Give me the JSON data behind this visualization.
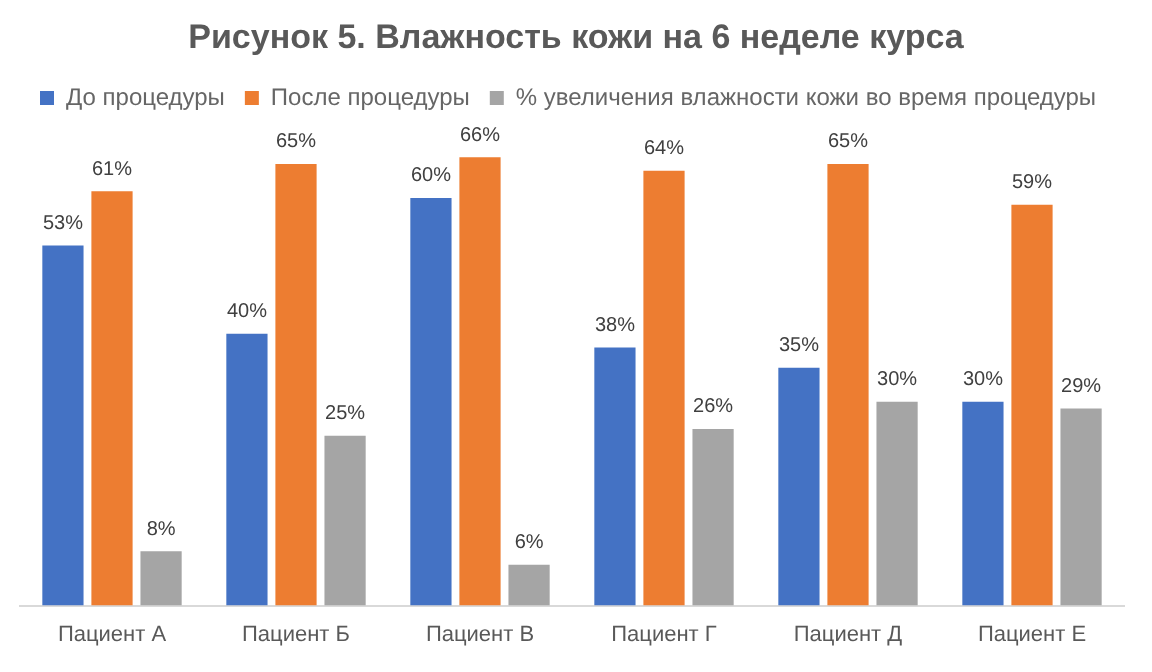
{
  "chart_data": {
    "type": "bar",
    "title": "Рисунок 5. Влажность кожи на 6 неделе курса",
    "categories": [
      "Пациент А",
      "Пациент Б",
      "Пациент В",
      "Пациент Г",
      "Пациент Д",
      "Пациент Е"
    ],
    "series": [
      {
        "name": "До процедуры",
        "color": "#4472c4",
        "values": [
          53,
          40,
          60,
          38,
          35,
          30
        ],
        "value_labels": [
          "53%",
          "40%",
          "60%",
          "38%",
          "35%",
          "30%"
        ]
      },
      {
        "name": "После процедуры",
        "color": "#ed7d31",
        "values": [
          61,
          65,
          66,
          64,
          65,
          59
        ],
        "value_labels": [
          "61%",
          "65%",
          "66%",
          "64%",
          "65%",
          "59%"
        ]
      },
      {
        "name": "% увеличения влажности кожи во время процедуры",
        "color": "#a5a5a5",
        "values": [
          8,
          25,
          6,
          26,
          30,
          29
        ],
        "value_labels": [
          "8%",
          "25%",
          "6%",
          "26%",
          "30%",
          "29%"
        ]
      }
    ],
    "grid": false,
    "legend": "top",
    "tick_labels": "x"
  }
}
